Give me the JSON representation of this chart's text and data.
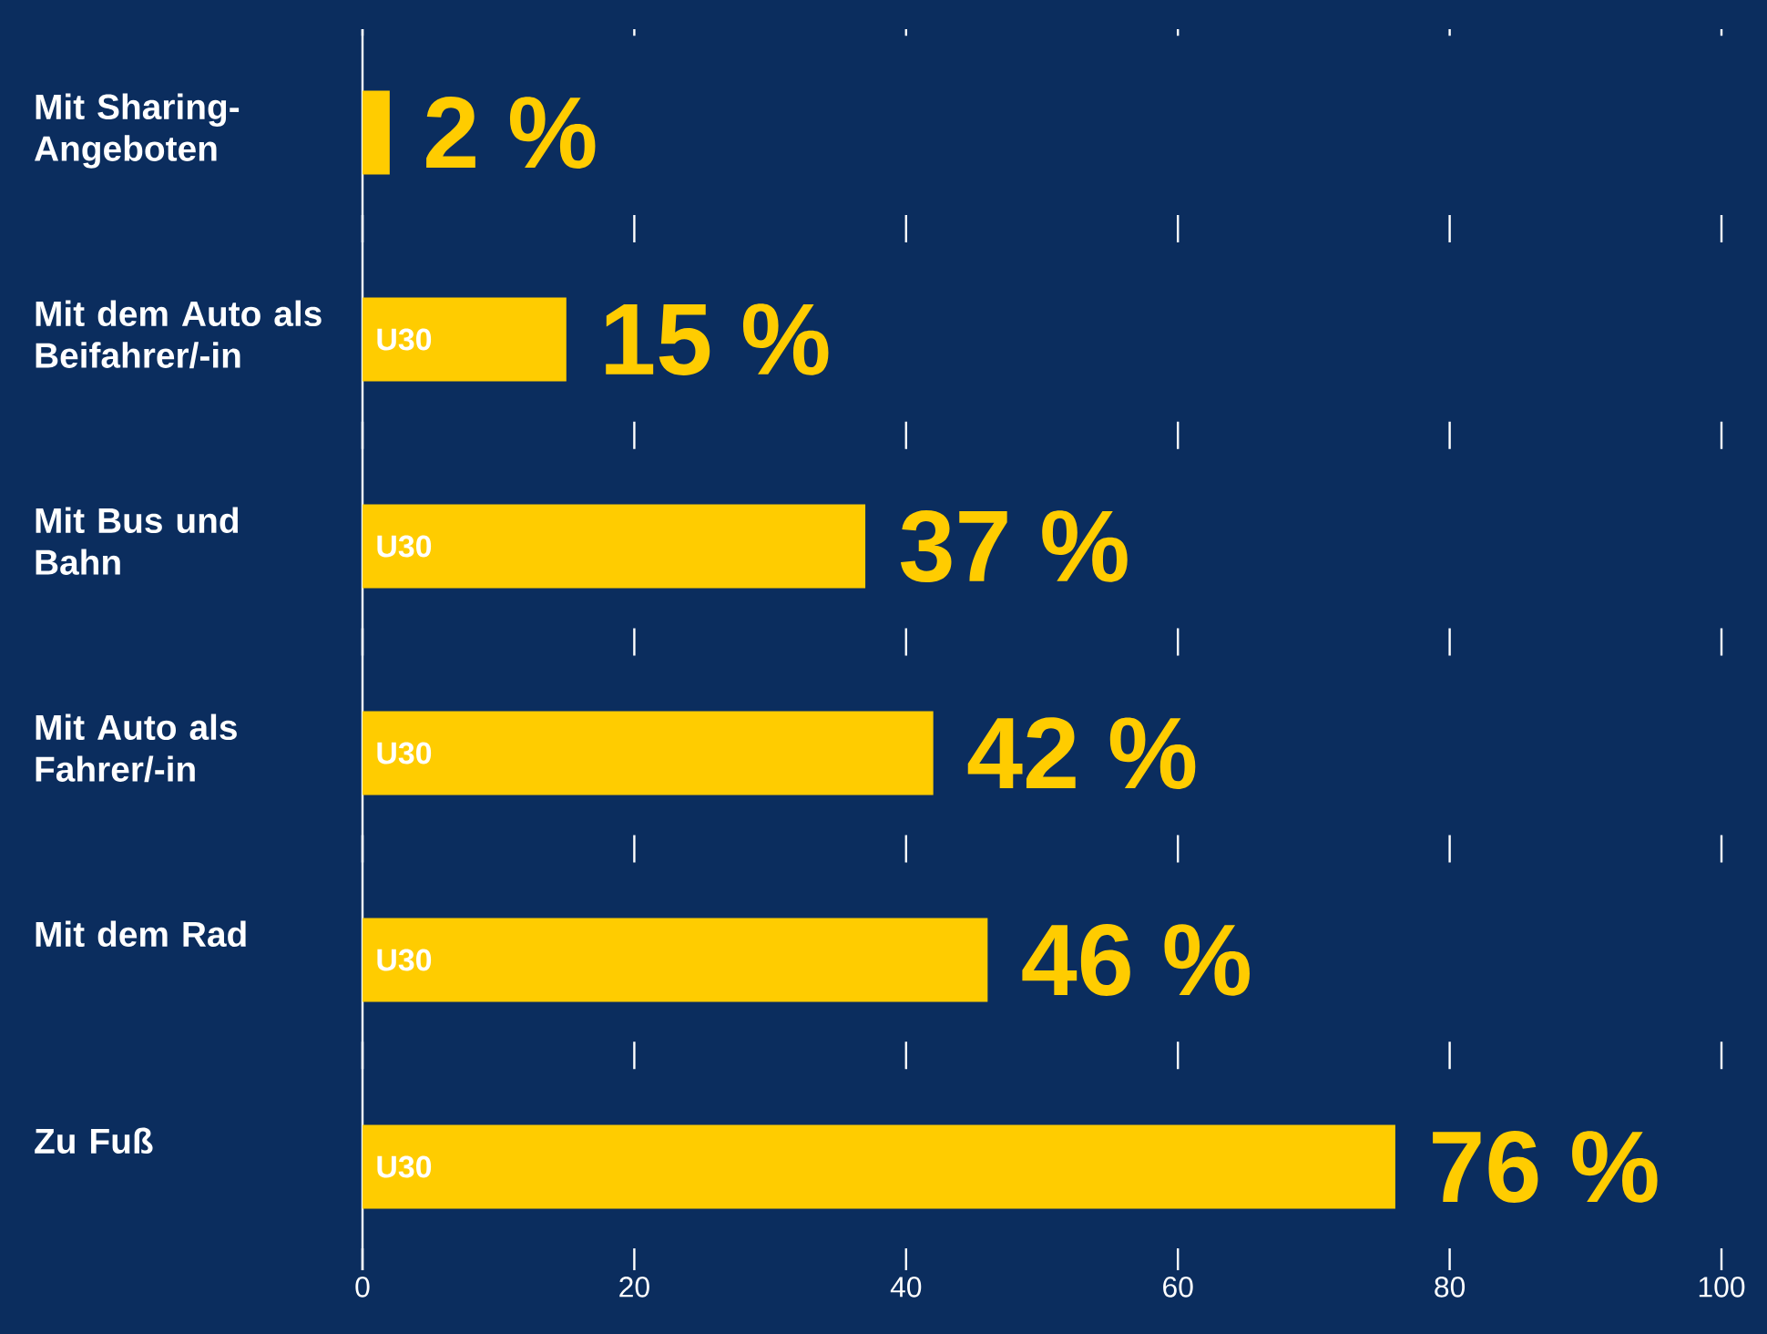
{
  "chart_data": {
    "type": "bar",
    "orientation": "horizontal",
    "categories": [
      "Mit Sharing-Angeboten",
      "Mit dem Auto als Beifahrer/-in",
      "Mit Bus und Bahn",
      "Mit Auto als Fahrer/-in",
      "Mit dem Rad",
      "Zu Fuß"
    ],
    "values": [
      2,
      15,
      37,
      42,
      46,
      76
    ],
    "value_labels": [
      "2 %",
      "15 %",
      "37 %",
      "42 %",
      "46 %",
      "76 %"
    ],
    "color": "#ffcc00",
    "xlim": [
      0,
      100
    ],
    "xticks": [
      0,
      20,
      40,
      60,
      80,
      100
    ],
    "grid": "x",
    "annotations": [
      "U30",
      "U30",
      "U30",
      "U30",
      "U30"
    ]
  }
}
